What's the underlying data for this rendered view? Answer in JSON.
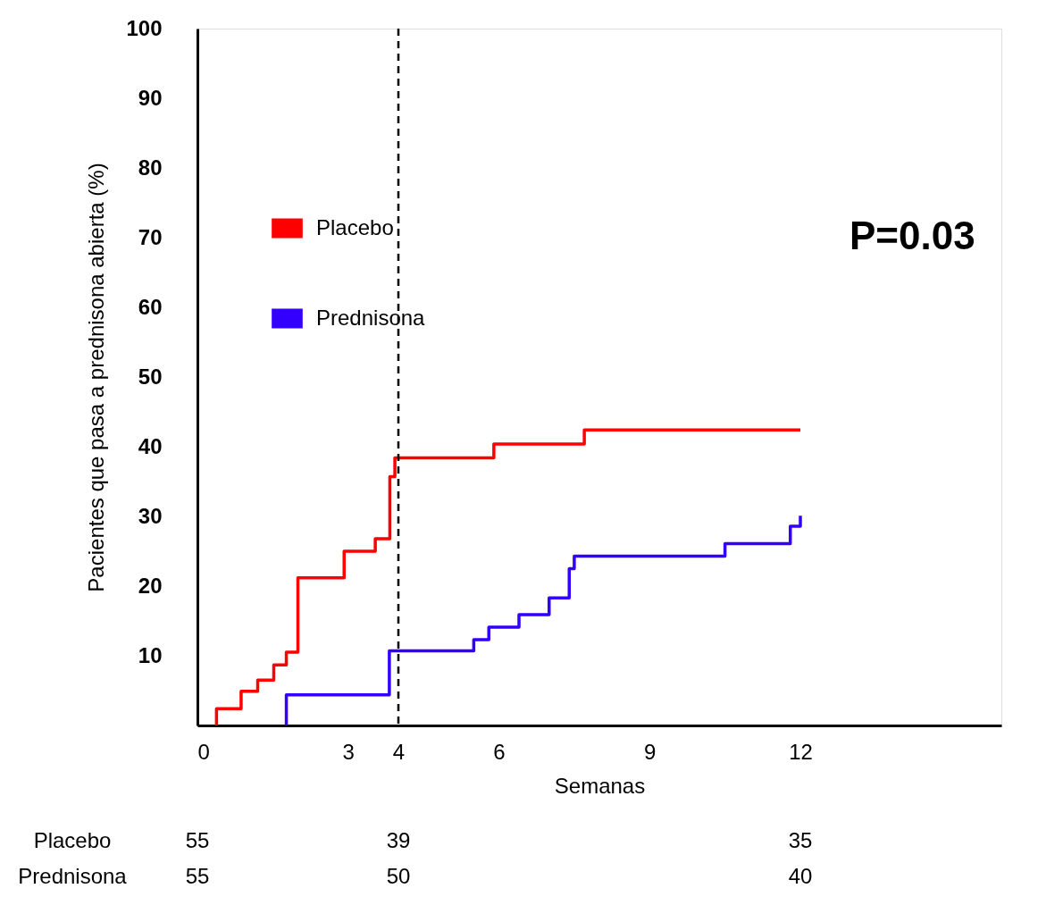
{
  "chart_data": {
    "type": "step",
    "xlabel": "Semanas",
    "ylabel": "Pacientes que pasa a prednisona abierta (%)",
    "xlim": [
      0,
      16
    ],
    "xticks": [
      0,
      3,
      4,
      6,
      9,
      12
    ],
    "ylim": [
      0,
      100
    ],
    "yticks": [
      10,
      20,
      30,
      40,
      50,
      60,
      70,
      80,
      90,
      100
    ],
    "grid": false,
    "legend": "top left",
    "line_style": "solid",
    "marker": "none",
    "series": [
      {
        "name": "Placebo",
        "color": "#ff0000",
        "x": [
          0.38,
          0.38,
          0.87,
          1.2,
          1.52,
          1.77,
          2.0,
          2.92,
          3.54,
          3.83,
          3.93,
          5.9,
          7.7,
          12
        ],
        "values": [
          0,
          2.4,
          4.9,
          6.5,
          8.7,
          10.5,
          21.2,
          25.0,
          26.8,
          35.7,
          38.4,
          40.4,
          42.4,
          42.4
        ]
      },
      {
        "name": "Prednisona",
        "color": "#3300ff",
        "x": [
          1.77,
          1.77,
          3.82,
          5.5,
          5.8,
          6.4,
          7.0,
          7.4,
          7.5,
          10.5,
          11.8,
          12
        ],
        "values": [
          0,
          4.4,
          10.7,
          12.3,
          14.1,
          15.9,
          18.3,
          22.5,
          24.3,
          26.1,
          28.6,
          30.1
        ]
      }
    ],
    "ref_lines": [
      {
        "axis": "x",
        "value": 4,
        "color": "#000000",
        "line_style": "dashed"
      }
    ],
    "annotations": [
      "P=0.03",
      "Placebo",
      "55",
      "39",
      "35",
      "Prednisona",
      "55",
      "50",
      "40"
    ]
  }
}
